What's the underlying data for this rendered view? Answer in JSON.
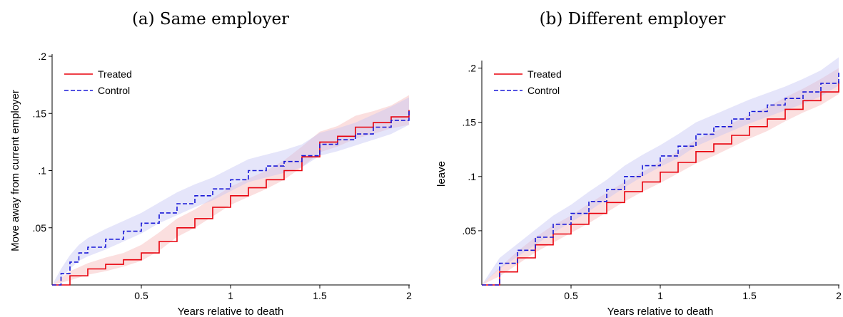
{
  "chart_data": [
    {
      "type": "line",
      "title": "(a) Same employer",
      "xlabel": "Years relative to death",
      "ylabel": "Move away from current employer",
      "xlim": [
        0,
        2
      ],
      "ylim": [
        0,
        0.2
      ],
      "x_ticks": [
        "0.5",
        "1",
        "1.5",
        "2"
      ],
      "x_tick_values": [
        0.5,
        1,
        1.5,
        2
      ],
      "y_ticks": [
        ".05",
        ".1",
        ".15",
        ".2"
      ],
      "y_tick_values": [
        0.05,
        0.1,
        0.15,
        0.2
      ],
      "legend": "top-left",
      "grid": false,
      "series": [
        {
          "name": "Treated",
          "color": "#e8000b",
          "dash": "solid",
          "band_color": "#f7b8b8",
          "x": [
            0,
            0.1,
            0.2,
            0.3,
            0.4,
            0.5,
            0.6,
            0.7,
            0.8,
            0.9,
            1.0,
            1.1,
            1.2,
            1.3,
            1.4,
            1.5,
            1.6,
            1.7,
            1.8,
            1.9,
            2.0
          ],
          "y": [
            0,
            0.008,
            0.014,
            0.018,
            0.022,
            0.028,
            0.038,
            0.05,
            0.058,
            0.068,
            0.078,
            0.085,
            0.092,
            0.1,
            0.112,
            0.125,
            0.13,
            0.138,
            0.142,
            0.147,
            0.153
          ],
          "ci_low": [
            0,
            0.004,
            0.009,
            0.012,
            0.016,
            0.021,
            0.03,
            0.042,
            0.05,
            0.06,
            0.07,
            0.077,
            0.084,
            0.092,
            0.103,
            0.116,
            0.121,
            0.128,
            0.132,
            0.137,
            0.14
          ],
          "ci_high": [
            0,
            0.012,
            0.019,
            0.024,
            0.028,
            0.035,
            0.046,
            0.058,
            0.066,
            0.076,
            0.086,
            0.093,
            0.1,
            0.109,
            0.121,
            0.134,
            0.139,
            0.148,
            0.152,
            0.157,
            0.166
          ]
        },
        {
          "name": "Control",
          "color": "#1818d8",
          "dash": "dashed",
          "band_color": "#c6c6f4",
          "x": [
            0,
            0.05,
            0.1,
            0.15,
            0.2,
            0.3,
            0.4,
            0.5,
            0.6,
            0.7,
            0.8,
            0.9,
            1.0,
            1.1,
            1.2,
            1.3,
            1.4,
            1.5,
            1.6,
            1.7,
            1.8,
            1.9,
            2.0
          ],
          "y": [
            0,
            0.01,
            0.02,
            0.028,
            0.033,
            0.04,
            0.047,
            0.054,
            0.063,
            0.071,
            0.078,
            0.084,
            0.092,
            0.1,
            0.104,
            0.108,
            0.113,
            0.123,
            0.127,
            0.132,
            0.138,
            0.144,
            0.153
          ],
          "ci_low": [
            0,
            0.006,
            0.014,
            0.021,
            0.025,
            0.031,
            0.038,
            0.045,
            0.054,
            0.061,
            0.068,
            0.074,
            0.082,
            0.09,
            0.094,
            0.098,
            0.103,
            0.113,
            0.117,
            0.122,
            0.127,
            0.132,
            0.14
          ],
          "ci_high": [
            0,
            0.014,
            0.026,
            0.035,
            0.041,
            0.049,
            0.056,
            0.063,
            0.072,
            0.081,
            0.088,
            0.094,
            0.102,
            0.11,
            0.114,
            0.118,
            0.123,
            0.133,
            0.137,
            0.142,
            0.149,
            0.156,
            0.164
          ]
        }
      ]
    },
    {
      "type": "line",
      "title": "(b) Different employer",
      "xlabel": "Years relative to death",
      "ylabel": "leave",
      "xlim": [
        0,
        2
      ],
      "ylim": [
        0,
        0.205
      ],
      "x_ticks": [
        "0.5",
        "1",
        "1.5",
        "2"
      ],
      "x_tick_values": [
        0.5,
        1,
        1.5,
        2
      ],
      "y_ticks": [
        ".05",
        ".1",
        ".15",
        ".2"
      ],
      "y_tick_values": [
        0.05,
        0.1,
        0.15,
        0.2
      ],
      "legend": "top-left",
      "grid": false,
      "series": [
        {
          "name": "Treated",
          "color": "#e8000b",
          "dash": "solid",
          "band_color": "#f7b8b8",
          "x": [
            0,
            0.1,
            0.2,
            0.3,
            0.4,
            0.5,
            0.6,
            0.7,
            0.8,
            0.9,
            1.0,
            1.1,
            1.2,
            1.3,
            1.4,
            1.5,
            1.6,
            1.7,
            1.8,
            1.9,
            2.0
          ],
          "y": [
            0,
            0.012,
            0.025,
            0.037,
            0.047,
            0.056,
            0.066,
            0.076,
            0.086,
            0.095,
            0.104,
            0.113,
            0.123,
            0.13,
            0.138,
            0.146,
            0.153,
            0.162,
            0.17,
            0.178,
            0.188
          ],
          "ci_low": [
            0,
            0.008,
            0.019,
            0.03,
            0.039,
            0.048,
            0.057,
            0.067,
            0.077,
            0.086,
            0.094,
            0.103,
            0.112,
            0.119,
            0.127,
            0.135,
            0.142,
            0.151,
            0.159,
            0.166,
            0.176
          ],
          "ci_high": [
            0,
            0.016,
            0.031,
            0.044,
            0.055,
            0.064,
            0.075,
            0.085,
            0.095,
            0.104,
            0.114,
            0.123,
            0.134,
            0.141,
            0.149,
            0.157,
            0.164,
            0.173,
            0.181,
            0.19,
            0.2
          ]
        },
        {
          "name": "Control",
          "color": "#1818d8",
          "dash": "dashed",
          "band_color": "#c6c6f4",
          "x": [
            0,
            0.1,
            0.2,
            0.3,
            0.4,
            0.5,
            0.6,
            0.7,
            0.8,
            0.9,
            1.0,
            1.1,
            1.2,
            1.3,
            1.4,
            1.5,
            1.6,
            1.7,
            1.8,
            1.9,
            2.0
          ],
          "y": [
            0,
            0.02,
            0.032,
            0.044,
            0.056,
            0.066,
            0.077,
            0.088,
            0.1,
            0.11,
            0.119,
            0.128,
            0.139,
            0.146,
            0.153,
            0.16,
            0.166,
            0.172,
            0.178,
            0.186,
            0.197
          ],
          "ci_low": [
            0,
            0.015,
            0.026,
            0.037,
            0.048,
            0.058,
            0.068,
            0.079,
            0.09,
            0.1,
            0.109,
            0.117,
            0.128,
            0.135,
            0.142,
            0.149,
            0.155,
            0.161,
            0.167,
            0.174,
            0.184
          ],
          "ci_high": [
            0,
            0.025,
            0.038,
            0.051,
            0.064,
            0.074,
            0.086,
            0.097,
            0.11,
            0.12,
            0.129,
            0.139,
            0.15,
            0.157,
            0.164,
            0.171,
            0.177,
            0.183,
            0.19,
            0.198,
            0.21
          ]
        }
      ]
    }
  ]
}
